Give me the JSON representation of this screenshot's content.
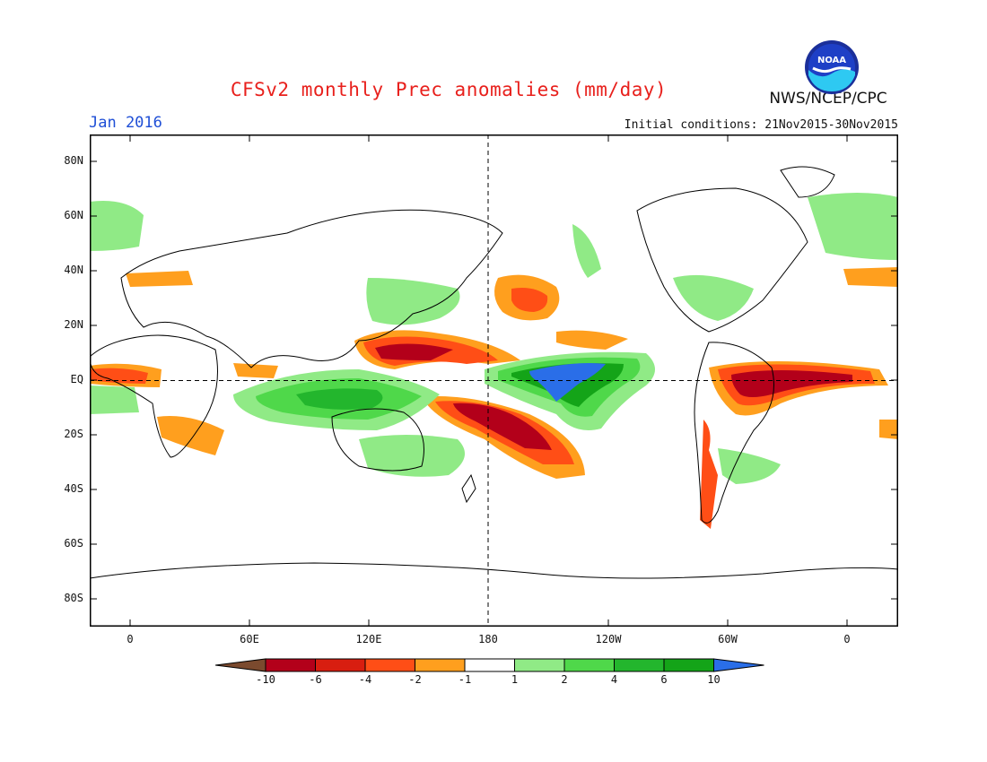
{
  "header": {
    "title": "CFSv2 monthly Prec anomalies (mm/day)",
    "month": "Jan 2016",
    "initial_conditions": "Initial conditions: 21Nov2015-30Nov2015",
    "agency": "NWS/NCEP/CPC",
    "logo_text": "NOAA"
  },
  "axes": {
    "lat_labels": [
      "80N",
      "60N",
      "40N",
      "20N",
      "EQ",
      "20S",
      "40S",
      "60S",
      "80S"
    ],
    "lon_labels": [
      "0",
      "60E",
      "120E",
      "180",
      "120W",
      "60W",
      "0"
    ]
  },
  "legend": {
    "tick_labels": [
      "-10",
      "-6",
      "-4",
      "-2",
      "-1",
      "1",
      "2",
      "4",
      "6",
      "10"
    ],
    "colors": [
      "#7b4a2e",
      "#b3001a",
      "#d81e10",
      "#ff4e16",
      "#ff9f1e",
      "#ffffff",
      "#90ea86",
      "#4fd84a",
      "#23b62d",
      "#14a418",
      "#2a6ee8"
    ]
  },
  "map_data": {
    "projection": "equirectangular",
    "lon_range": [
      -20,
      380
    ],
    "lat_range": [
      -90,
      90
    ]
  }
}
